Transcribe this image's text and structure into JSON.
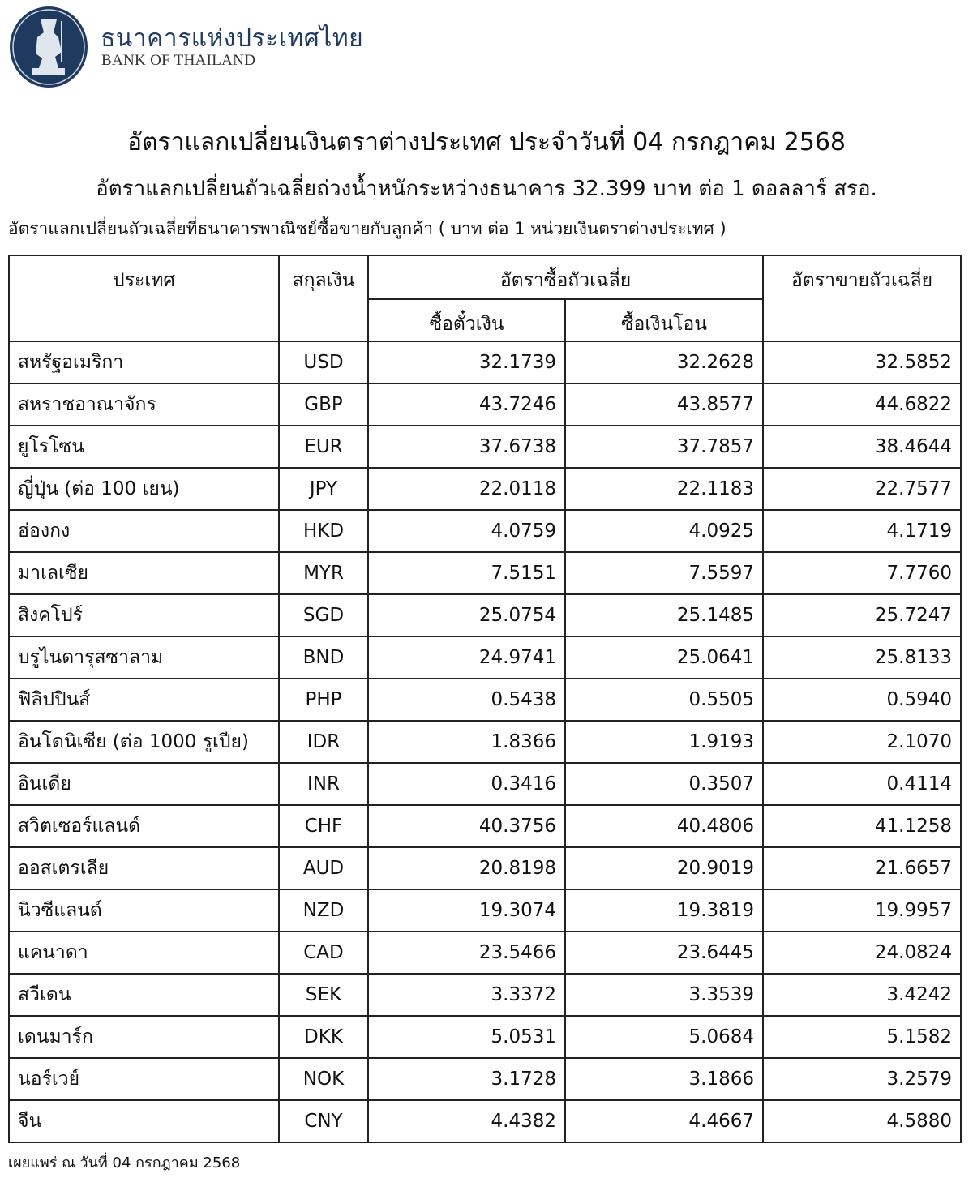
{
  "header": {
    "bank_name_th": "ธนาคารแห่งประเทศไทย",
    "bank_name_en": "BANK OF THAILAND",
    "brand_color": "#1f3a5f"
  },
  "title": "อัตราแลกเปลี่ยนเงินตราต่างประเทศ ประจำวันที่ 04 กรกฎาคม 2568",
  "subtitle": "อัตราแลกเปลี่ยนถัวเฉลี่ยถ่วงน้ำหนักระหว่างธนาคาร 32.399 บาท ต่อ 1 ดอลลาร์ สรอ.",
  "caption": "อัตราแลกเปลี่ยนถัวเฉลี่ยที่ธนาคารพาณิชย์ซื้อขายกับลูกค้า ( บาท ต่อ 1 หน่วยเงินตราต่างประเทศ )",
  "table": {
    "headers": {
      "country": "ประเทศ",
      "currency": "สกุลเงิน",
      "buying": "อัตราซื้อถัวเฉลี่ย",
      "buying_sight": "ซื้อตั๋วเงิน",
      "buying_transfer": "ซื้อเงินโอน",
      "selling": "อัตราขายถัวเฉลี่ย"
    },
    "rows": [
      {
        "country": "สหรัฐอเมริกา",
        "currency": "USD",
        "sight": "32.1739",
        "transfer": "32.2628",
        "sell": "32.5852"
      },
      {
        "country": "สหราชอาณาจักร",
        "currency": "GBP",
        "sight": "43.7246",
        "transfer": "43.8577",
        "sell": "44.6822"
      },
      {
        "country": "ยูโรโซน",
        "currency": "EUR",
        "sight": "37.6738",
        "transfer": "37.7857",
        "sell": "38.4644"
      },
      {
        "country": "ญี่ปุ่น (ต่อ 100 เยน)",
        "currency": "JPY",
        "sight": "22.0118",
        "transfer": "22.1183",
        "sell": "22.7577"
      },
      {
        "country": "ฮ่องกง",
        "currency": "HKD",
        "sight": "4.0759",
        "transfer": "4.0925",
        "sell": "4.1719"
      },
      {
        "country": "มาเลเซีย",
        "currency": "MYR",
        "sight": "7.5151",
        "transfer": "7.5597",
        "sell": "7.7760"
      },
      {
        "country": "สิงคโปร์",
        "currency": "SGD",
        "sight": "25.0754",
        "transfer": "25.1485",
        "sell": "25.7247"
      },
      {
        "country": "บรูไนดารุสซาลาม",
        "currency": "BND",
        "sight": "24.9741",
        "transfer": "25.0641",
        "sell": "25.8133"
      },
      {
        "country": "ฟิลิปปินส์",
        "currency": "PHP",
        "sight": "0.5438",
        "transfer": "0.5505",
        "sell": "0.5940"
      },
      {
        "country": "อินโดนิเซีย (ต่อ 1000 รูเปีย)",
        "currency": "IDR",
        "sight": "1.8366",
        "transfer": "1.9193",
        "sell": "2.1070"
      },
      {
        "country": "อินเดีย",
        "currency": "INR",
        "sight": "0.3416",
        "transfer": "0.3507",
        "sell": "0.4114"
      },
      {
        "country": "สวิตเซอร์แลนด์",
        "currency": "CHF",
        "sight": "40.3756",
        "transfer": "40.4806",
        "sell": "41.1258"
      },
      {
        "country": "ออสเตรเลีย",
        "currency": "AUD",
        "sight": "20.8198",
        "transfer": "20.9019",
        "sell": "21.6657"
      },
      {
        "country": "นิวซีแลนด์",
        "currency": "NZD",
        "sight": "19.3074",
        "transfer": "19.3819",
        "sell": "19.9957"
      },
      {
        "country": "แคนาดา",
        "currency": "CAD",
        "sight": "23.5466",
        "transfer": "23.6445",
        "sell": "24.0824"
      },
      {
        "country": "สวีเดน",
        "currency": "SEK",
        "sight": "3.3372",
        "transfer": "3.3539",
        "sell": "3.4242"
      },
      {
        "country": "เดนมาร์ก",
        "currency": "DKK",
        "sight": "5.0531",
        "transfer": "5.0684",
        "sell": "5.1582"
      },
      {
        "country": "นอร์เวย์",
        "currency": "NOK",
        "sight": "3.1728",
        "transfer": "3.1866",
        "sell": "3.2579"
      },
      {
        "country": "จีน",
        "currency": "CNY",
        "sight": "4.4382",
        "transfer": "4.4667",
        "sell": "4.5880"
      }
    ]
  },
  "footer": "เผยแพร่ ณ วันที่ 04 กรกฎาคม 2568"
}
